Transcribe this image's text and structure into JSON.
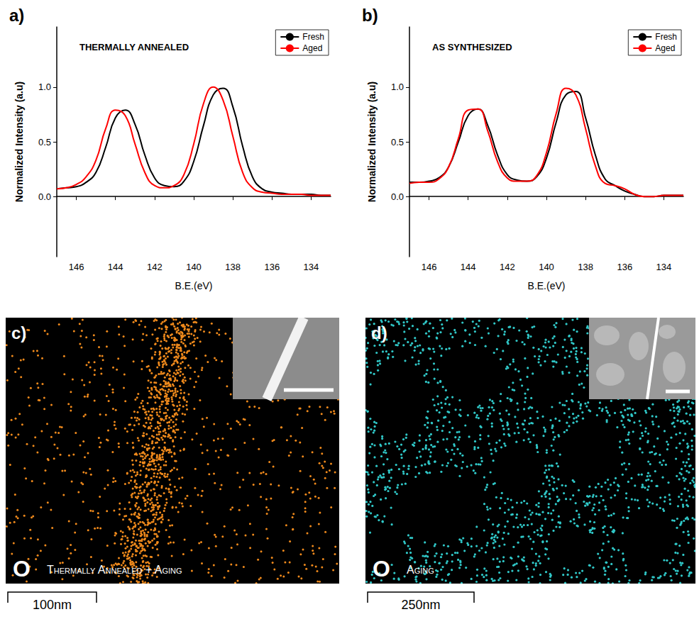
{
  "chart_data": [
    {
      "type": "line",
      "panel": "a)",
      "annotation": "THERMALLY ANNEALED",
      "x_label": "B.E.(eV)",
      "y_label": "Normalized Intensity (a.u)",
      "x": [
        147,
        146.5,
        146,
        145.5,
        145,
        144.5,
        144,
        143.5,
        143,
        142.5,
        142,
        141.5,
        141,
        140.5,
        140,
        139.5,
        139,
        138.5,
        138,
        137.5,
        137,
        136.5,
        136,
        135.5,
        135,
        134.5,
        134,
        133.5,
        133
      ],
      "series": [
        {
          "name": "Fresh",
          "color": "#000000",
          "values": [
            0.07,
            0.08,
            0.09,
            0.13,
            0.22,
            0.45,
            0.72,
            0.79,
            0.66,
            0.38,
            0.17,
            0.1,
            0.09,
            0.14,
            0.32,
            0.65,
            0.93,
            0.99,
            0.82,
            0.46,
            0.18,
            0.07,
            0.04,
            0.03,
            0.02,
            0.02,
            0.02,
            0.01,
            0.01
          ]
        },
        {
          "name": "Aged",
          "color": "#ff0000",
          "values": [
            0.07,
            0.08,
            0.11,
            0.18,
            0.33,
            0.62,
            0.79,
            0.74,
            0.48,
            0.22,
            0.1,
            0.08,
            0.1,
            0.2,
            0.48,
            0.85,
            1.0,
            0.88,
            0.55,
            0.22,
            0.08,
            0.04,
            0.03,
            0.02,
            0.02,
            0.02,
            0.01,
            0.01,
            0.01
          ]
        }
      ],
      "xlim": [
        147,
        133
      ],
      "xticks": [
        146,
        144,
        142,
        140,
        138,
        136,
        134
      ],
      "ylim": [
        -0.55,
        1.55
      ],
      "yticks": [
        {
          "value": 0,
          "label": "0.0"
        },
        {
          "value": 0.5,
          "label": "0.5"
        },
        {
          "value": 1,
          "label": "1.0"
        }
      ],
      "grid": false,
      "legend": "upper right"
    },
    {
      "type": "line",
      "panel": "b)",
      "annotation": "AS SYNTHESIZED",
      "x_label": "B.E.(eV)",
      "y_label": "Normalized Intensity (a.u)",
      "x": [
        147,
        146.5,
        146,
        145.5,
        145,
        144.5,
        144,
        143.5,
        143,
        142.5,
        142,
        141.5,
        141,
        140.5,
        140,
        139.5,
        139,
        138.5,
        138,
        137.5,
        137,
        136.5,
        136,
        135.5,
        135,
        134.5,
        134,
        133.5,
        133
      ],
      "series": [
        {
          "name": "Fresh",
          "color": "#000000",
          "values": [
            0.13,
            0.13,
            0.14,
            0.17,
            0.27,
            0.5,
            0.74,
            0.8,
            0.65,
            0.38,
            0.2,
            0.15,
            0.14,
            0.18,
            0.35,
            0.68,
            0.93,
            0.96,
            0.72,
            0.38,
            0.16,
            0.1,
            0.05,
            0.02,
            0.0,
            0.0,
            0.01,
            0.01,
            0.01
          ]
        },
        {
          "name": "Aged",
          "color": "#ff0000",
          "values": [
            0.12,
            0.13,
            0.13,
            0.16,
            0.27,
            0.53,
            0.79,
            0.8,
            0.6,
            0.32,
            0.17,
            0.14,
            0.14,
            0.19,
            0.4,
            0.76,
            0.99,
            0.93,
            0.62,
            0.28,
            0.12,
            0.1,
            0.07,
            0.02,
            0.0,
            0.0,
            0.01,
            0.01,
            0.01
          ]
        }
      ],
      "xlim": [
        147,
        133
      ],
      "xticks": [
        146,
        144,
        142,
        140,
        138,
        136,
        134
      ],
      "ylim": [
        -0.55,
        1.55
      ],
      "yticks": [
        {
          "value": 0,
          "label": "0.0"
        },
        {
          "value": 0.5,
          "label": "0.5"
        },
        {
          "value": 1,
          "label": "1.0"
        }
      ],
      "grid": false,
      "legend": "upper right"
    }
  ],
  "maps": [
    {
      "panel": "c)",
      "element": "O",
      "caption": "Thermally Annealed + Aging",
      "scale_bar": "100nm",
      "color": "#f08a1c"
    },
    {
      "panel": "d)",
      "element": "O",
      "caption": "Aging",
      "scale_bar": "250nm",
      "color": "#30c8c8"
    }
  ]
}
